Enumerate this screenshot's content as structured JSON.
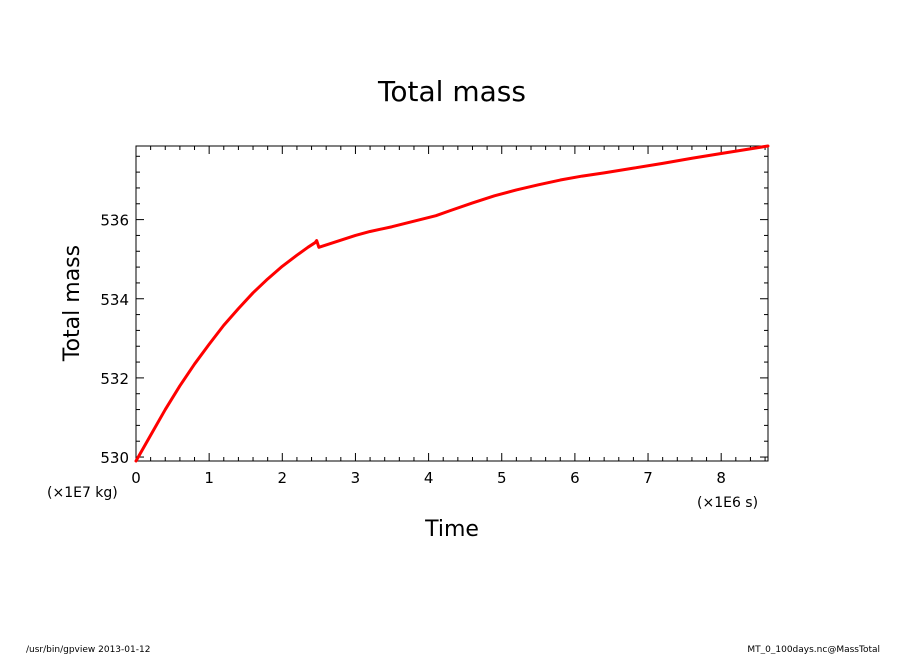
{
  "chart_data": {
    "type": "line",
    "title": "Total mass",
    "xlabel": "Time",
    "ylabel": "Total mass",
    "x_unit": "(×1E6 s)",
    "y_unit": "(×1E7 kg)",
    "xlim": [
      0,
      8.64
    ],
    "ylim": [
      529.9,
      537.86
    ],
    "x_ticks": [
      0,
      1,
      2,
      3,
      4,
      5,
      6,
      7,
      8
    ],
    "y_ticks": [
      530,
      532,
      534,
      536
    ],
    "grid": false,
    "line_color": "#ff0000",
    "series": [
      {
        "x": [
          0,
          0.2,
          0.4,
          0.6,
          0.8,
          1.0,
          1.2,
          1.4,
          1.6,
          1.8,
          2.0,
          2.2,
          2.35,
          2.45,
          2.47,
          2.5,
          2.7,
          3.0,
          3.2,
          3.5,
          3.8,
          4.1,
          4.3,
          4.6,
          4.9,
          5.2,
          5.5,
          5.8,
          6.1,
          6.4,
          6.8,
          7.2,
          7.6,
          8.0,
          8.3,
          8.64
        ],
        "y": [
          529.9,
          530.55,
          531.2,
          531.8,
          532.35,
          532.85,
          533.33,
          533.75,
          534.15,
          534.5,
          534.82,
          535.1,
          535.3,
          535.42,
          535.47,
          535.3,
          535.42,
          535.6,
          535.7,
          535.82,
          535.96,
          536.1,
          536.23,
          536.42,
          536.6,
          536.75,
          536.88,
          537.0,
          537.1,
          537.18,
          537.3,
          537.42,
          537.55,
          537.67,
          537.76,
          537.86
        ]
      }
    ]
  },
  "footer": {
    "left": "/usr/bin/gpview   2013-01-12",
    "right": "MT_0_100days.nc@MassTotal"
  }
}
